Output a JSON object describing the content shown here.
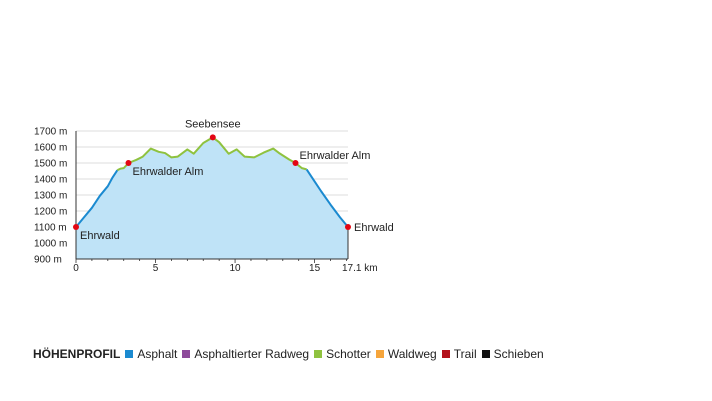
{
  "chart_data": {
    "type": "area",
    "xlabel": "",
    "ylabel": "",
    "xlim": [
      0,
      17.1
    ],
    "ylim": [
      900,
      1700
    ],
    "x_ticks": [
      {
        "v": 0,
        "label": "0"
      },
      {
        "v": 5,
        "label": "5"
      },
      {
        "v": 10,
        "label": "10"
      },
      {
        "v": 15,
        "label": "15"
      },
      {
        "v": 17.1,
        "label": "17.1 km"
      }
    ],
    "y_ticks": [
      {
        "v": 900,
        "label": "900 m"
      },
      {
        "v": 1000,
        "label": "1000 m"
      },
      {
        "v": 1100,
        "label": "1100 m"
      },
      {
        "v": 1200,
        "label": "1200 m"
      },
      {
        "v": 1300,
        "label": "1300 m"
      },
      {
        "v": 1400,
        "label": "1400 m"
      },
      {
        "v": 1500,
        "label": "1500 m"
      },
      {
        "v": 1600,
        "label": "1600 m"
      },
      {
        "v": 1700,
        "label": "1700 m"
      }
    ],
    "grid": true,
    "profile": [
      [
        0,
        1100
      ],
      [
        0.5,
        1160
      ],
      [
        1,
        1220
      ],
      [
        1.5,
        1295
      ],
      [
        2,
        1355
      ],
      [
        2.3,
        1410
      ],
      [
        2.6,
        1455
      ],
      [
        2.8,
        1465
      ],
      [
        3,
        1468
      ],
      [
        3.3,
        1500
      ],
      [
        3.8,
        1520
      ],
      [
        4.2,
        1540
      ],
      [
        4.7,
        1590
      ],
      [
        5.2,
        1570
      ],
      [
        5.6,
        1562
      ],
      [
        6,
        1535
      ],
      [
        6.4,
        1540
      ],
      [
        7,
        1585
      ],
      [
        7.4,
        1558
      ],
      [
        8,
        1625
      ],
      [
        8.6,
        1660
      ],
      [
        9,
        1630
      ],
      [
        9.6,
        1558
      ],
      [
        10.1,
        1585
      ],
      [
        10.6,
        1540
      ],
      [
        11.2,
        1535
      ],
      [
        11.8,
        1565
      ],
      [
        12.4,
        1590
      ],
      [
        12.8,
        1560
      ],
      [
        13.4,
        1522
      ],
      [
        13.8,
        1500
      ],
      [
        14.2,
        1468
      ],
      [
        14.5,
        1460
      ],
      [
        15,
        1385
      ],
      [
        15.4,
        1325
      ],
      [
        16,
        1240
      ],
      [
        16.6,
        1160
      ],
      [
        17.1,
        1100
      ]
    ],
    "segments": [
      {
        "surface": "Asphalt",
        "from": 0,
        "to": 2.6
      },
      {
        "surface": "Schotter",
        "from": 2.6,
        "to": 14.5
      },
      {
        "surface": "Asphalt",
        "from": 14.5,
        "to": 17.1
      }
    ],
    "waypoints": [
      {
        "name": "Ehrwald",
        "x": 0,
        "y": 1100,
        "pos": "below-right"
      },
      {
        "name": "Ehrwalder Alm",
        "x": 3.3,
        "y": 1500,
        "pos": "below-right"
      },
      {
        "name": "Seebensee",
        "x": 8.6,
        "y": 1660,
        "pos": "above"
      },
      {
        "name": "Ehrwalder Alm",
        "x": 13.8,
        "y": 1500,
        "pos": "above-right"
      },
      {
        "name": "Ehrwald",
        "x": 17.1,
        "y": 1100,
        "pos": "right"
      }
    ],
    "colors": {
      "fill": "#bfe3f7",
      "waypoint": "#e30613"
    }
  },
  "legend": {
    "title": "HÖHENPROFIL",
    "items": [
      {
        "label": "Asphalt",
        "color": "#1b8ad0"
      },
      {
        "label": "Asphaltierter Radweg",
        "color": "#8e4a9b"
      },
      {
        "label": "Schotter",
        "color": "#8fc23f"
      },
      {
        "label": "Waldweg",
        "color": "#f6a53b"
      },
      {
        "label": "Trail",
        "color": "#b3121b"
      },
      {
        "label": "Schieben",
        "color": "#111111"
      }
    ]
  }
}
